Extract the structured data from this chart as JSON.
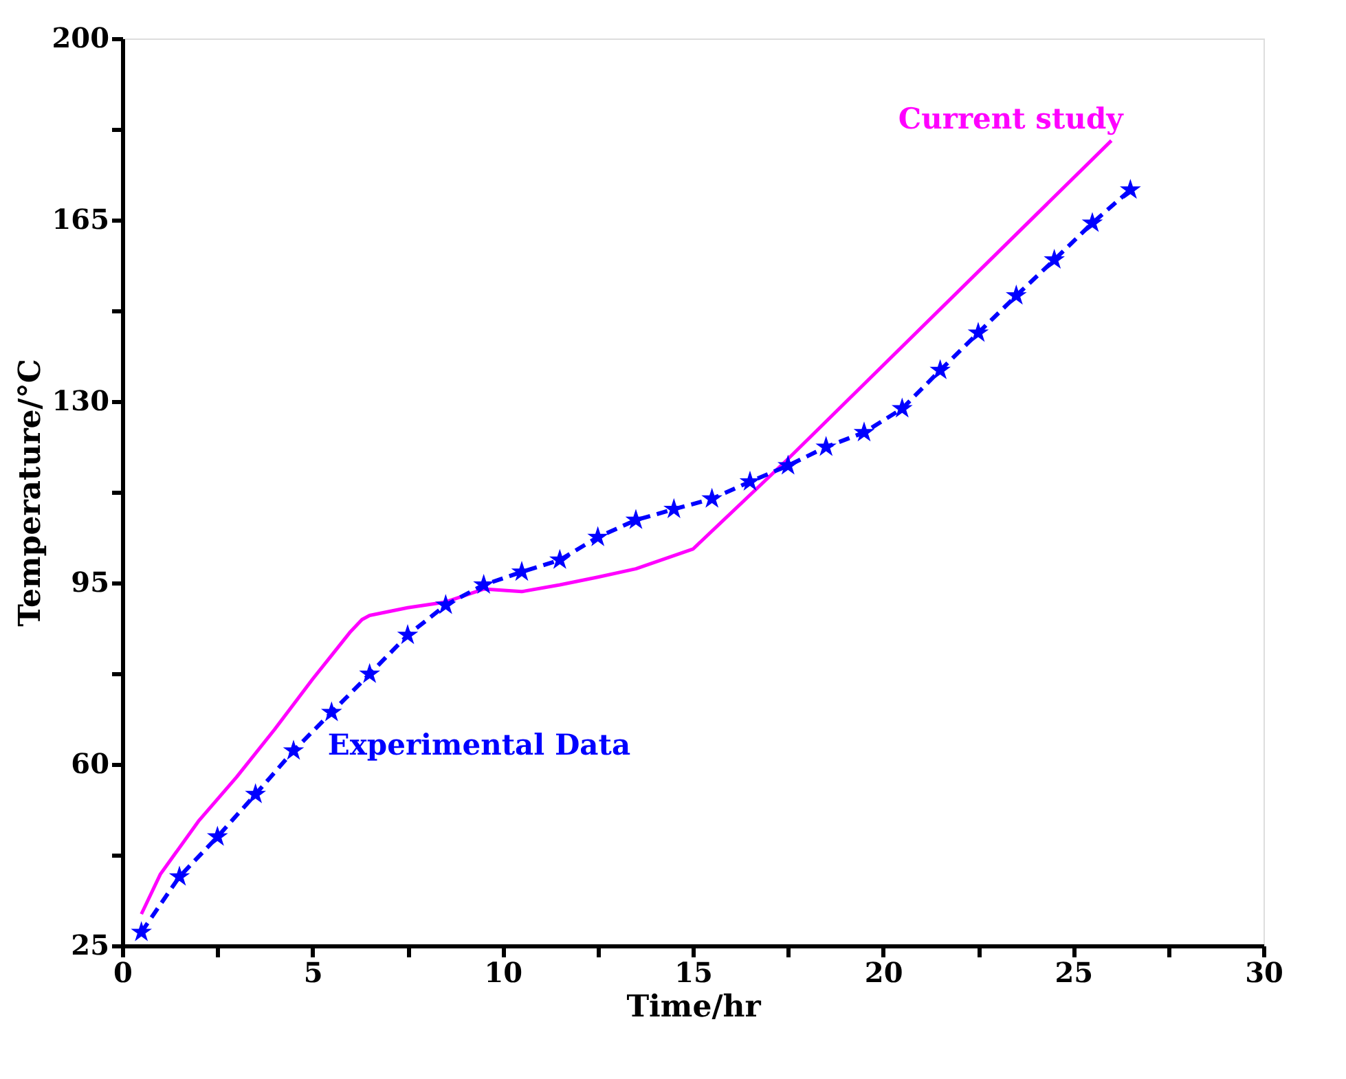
{
  "chart_data": {
    "type": "line",
    "xlabel": "Time/hr",
    "ylabel": "Temperature/°C",
    "xlim": [
      0,
      30
    ],
    "ylim": [
      25,
      200
    ],
    "xticks": [
      0,
      {
        "value": 2.5,
        "label": null
      },
      5,
      {
        "value": 7.5,
        "label": null
      },
      10,
      {
        "value": 12.5,
        "label": null
      },
      15,
      {
        "value": 17.5,
        "label": null
      },
      20,
      {
        "value": 22.5,
        "label": null
      },
      25,
      {
        "value": 27.5,
        "label": null
      },
      30
    ],
    "yticks": [
      25,
      {
        "value": 42.5,
        "label": null
      },
      60,
      {
        "value": 77.5,
        "label": null
      },
      95,
      {
        "value": 112.5,
        "label": null
      },
      130,
      {
        "value": 147.5,
        "label": null
      },
      165,
      {
        "value": 182.5,
        "label": null
      },
      200
    ],
    "grid": false,
    "legend": false,
    "series": [
      {
        "name": "Current study",
        "color": "#ff00ff",
        "marker": "none",
        "line_style": "solid",
        "x": [
          0.5,
          1,
          2,
          3,
          4,
          5,
          5.5,
          6,
          6.3,
          6.5,
          7.5,
          8.5,
          9.5,
          10.5,
          11.5,
          12.5,
          13.5,
          15,
          17.5,
          26
        ],
        "values": [
          31.1,
          38.8,
          49,
          57.5,
          66.7,
          76.4,
          81,
          85.6,
          87.9,
          88.7,
          90.2,
          91.3,
          93.8,
          93.3,
          94.6,
          96.1,
          97.7,
          101.5,
          118.9,
          180.3
        ]
      },
      {
        "name": "Experimental Data",
        "color": "#0000ff",
        "marker": "star",
        "line_style": "dashed",
        "x": [
          0.5,
          1.5,
          2.5,
          3.5,
          4.5,
          5.5,
          6.5,
          7.5,
          8.5,
          9.5,
          10.5,
          11.5,
          12.5,
          13.5,
          14.5,
          15.5,
          16.5,
          17.5,
          18.5,
          19.5,
          20.5,
          21.5,
          22.5,
          23.5,
          24.5,
          25.5,
          26.5
        ],
        "values": [
          27.6,
          38.3,
          46,
          54.2,
          62.6,
          70,
          77.4,
          84.9,
          90.7,
          94.6,
          97.1,
          99.4,
          103.8,
          107.1,
          109.2,
          111.2,
          114.5,
          117.6,
          121.2,
          124,
          128.6,
          136,
          143.2,
          150.4,
          157.3,
          164.4,
          170.8
        ]
      }
    ]
  }
}
